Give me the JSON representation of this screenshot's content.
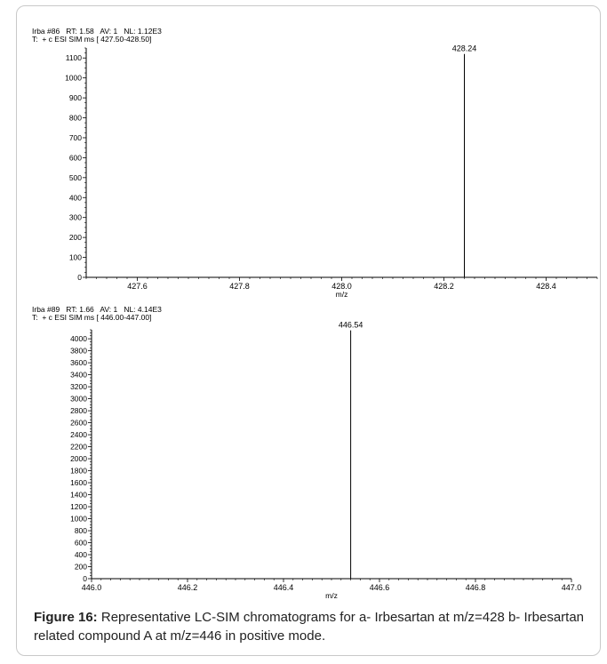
{
  "chart_data": [
    {
      "type": "bar",
      "header_line1": "Irba #86   RT: 1.58   AV: 1   NL: 1.12E3",
      "header_line2": "T:  + c ESI SIM ms [ 427.50-428.50]",
      "xlabel": "m/z",
      "xlim": [
        427.5,
        428.5
      ],
      "ylim": [
        0,
        1150
      ],
      "x_ticks": [
        427.6,
        427.8,
        428.0,
        428.2,
        428.4
      ],
      "x_tick_labels": [
        "427.6",
        "427.8",
        "428.0",
        "428.2",
        "428.4"
      ],
      "y_ticks": [
        0,
        100,
        200,
        300,
        400,
        500,
        600,
        700,
        800,
        900,
        1000,
        1100
      ],
      "y_tick_labels": [
        "0",
        "100",
        "200",
        "300",
        "400",
        "500",
        "600",
        "700",
        "800",
        "900",
        "1000",
        "1100"
      ],
      "peaks": [
        {
          "x": 428.24,
          "y": 1120,
          "label": "428.24"
        }
      ]
    },
    {
      "type": "bar",
      "header_line1": "Irba #89   RT: 1.66   AV: 1   NL: 4.14E3",
      "header_line2": "T:  + c ESI SIM ms [ 446.00-447.00]",
      "xlabel": "m/z",
      "xlim": [
        446.0,
        447.0
      ],
      "ylim": [
        0,
        4150
      ],
      "x_ticks": [
        446.0,
        446.2,
        446.4,
        446.6,
        446.8,
        447.0
      ],
      "x_tick_labels": [
        "446.0",
        "446.2",
        "446.4",
        "446.6",
        "446.8",
        "447.0"
      ],
      "y_ticks": [
        0,
        200,
        400,
        600,
        800,
        1000,
        1200,
        1400,
        1600,
        1800,
        2000,
        2200,
        2400,
        2600,
        2800,
        3000,
        3200,
        3400,
        3600,
        3800,
        4000
      ],
      "y_tick_labels": [
        "0",
        "200",
        "400",
        "600",
        "800",
        "1000",
        "1200",
        "1400",
        "1600",
        "1800",
        "2000",
        "2200",
        "2400",
        "2600",
        "2800",
        "3000",
        "3200",
        "3400",
        "3600",
        "3800",
        "4000"
      ],
      "peaks": [
        {
          "x": 446.54,
          "y": 4140,
          "label": "446.54"
        }
      ]
    }
  ],
  "caption": {
    "label": "Figure 16:",
    "text": " Representative LC-SIM chromatograms for a- Irbesartan at m/z=428 b- Irbesartan related compound A at m/z=446 in positive mode."
  }
}
